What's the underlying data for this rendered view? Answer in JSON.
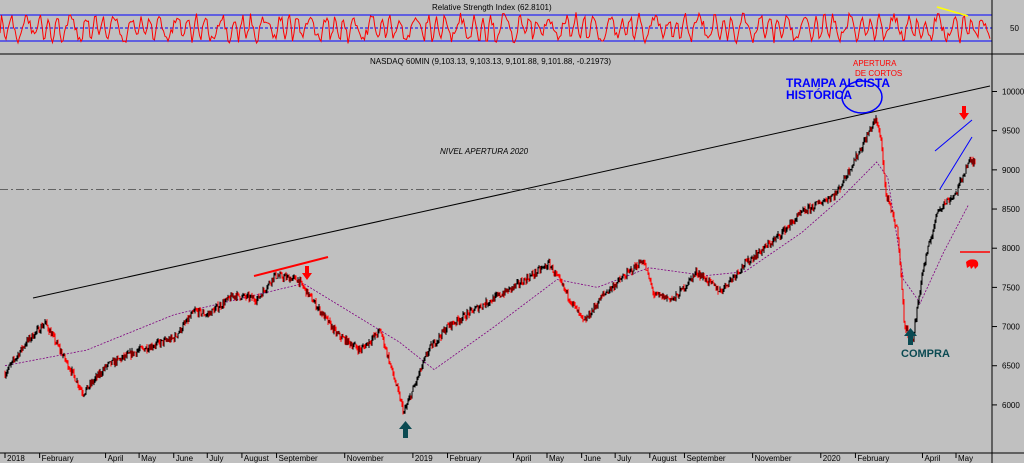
{
  "chart_data": {
    "type": "line",
    "panels": {
      "rsi": {
        "title": "Relative Strength Index (62.8101)",
        "tick_labels": [
          "50"
        ],
        "ylim": [
          0,
          100
        ],
        "levels": [
          70,
          50,
          30
        ]
      },
      "price": {
        "title": "NASDAQ 60MIN (9,103.13, 9,103.13, 9,101.88, 9,101.88, -0.21973)",
        "ylim": [
          5450,
          10300
        ],
        "y_ticks": [
          6000,
          6500,
          7000,
          7500,
          8000,
          8500,
          9000,
          9500,
          10000
        ],
        "x_labels": [
          "2018",
          "February",
          "April",
          "May",
          "June",
          "July",
          "August",
          "September",
          "November",
          "2019",
          "February",
          "April",
          "May",
          "June",
          "July",
          "August",
          "September",
          "November",
          "2020",
          "February",
          "April",
          "May"
        ],
        "nivel_2020": 8750
      }
    },
    "series": [
      {
        "name": "NASDAQ 60MIN",
        "x": [
          "2018-01",
          "2018-01-20",
          "2018-02-06",
          "2018-03-12",
          "2018-04-02",
          "2018-05-01",
          "2018-06-01",
          "2018-06-20",
          "2018-07-01",
          "2018-07-25",
          "2018-08-15",
          "2018-08-30",
          "2018-09-20",
          "2018-10-10",
          "2018-10-25",
          "2018-11-15",
          "2018-12-03",
          "2018-12-24",
          "2019-01-15",
          "2019-02-01",
          "2019-03-01",
          "2019-04-01",
          "2019-05-03",
          "2019-06-03",
          "2019-06-20",
          "2019-07-26",
          "2019-08-05",
          "2019-08-23",
          "2019-09-12",
          "2019-10-03",
          "2019-10-25",
          "2019-11-20",
          "2019-12-15",
          "2020-01-15",
          "2020-02-05",
          "2020-02-19",
          "2020-02-24",
          "2020-02-28",
          "2020-03-10",
          "2020-03-16",
          "2020-03-23",
          "2020-04-01",
          "2020-04-15",
          "2020-05-01",
          "2020-05-12"
        ],
        "values": [
          6400,
          6800,
          7050,
          6150,
          6500,
          6700,
          6850,
          7200,
          7150,
          7400,
          7350,
          7650,
          7600,
          7200,
          6900,
          6700,
          6950,
          5900,
          6700,
          7000,
          7250,
          7500,
          7800,
          7050,
          7400,
          7850,
          7400,
          7350,
          7700,
          7450,
          7800,
          8100,
          8450,
          8700,
          9250,
          9650,
          9400,
          8700,
          8200,
          7000,
          6800,
          7700,
          8500,
          8700,
          9100
        ]
      },
      {
        "name": "Media móvil",
        "x": [
          "2018-01",
          "2018-03-15",
          "2018-06-01",
          "2018-09-25",
          "2018-12-20",
          "2019-01-20",
          "2019-03-15",
          "2019-05-10",
          "2019-06-15",
          "2019-07-31",
          "2019-09-20",
          "2019-10-25",
          "2019-12-15",
          "2020-01-20",
          "2020-02-20",
          "2020-03-01",
          "2020-03-15",
          "2020-03-30",
          "2020-04-20",
          "2020-05-12"
        ],
        "values": [
          6500,
          6700,
          7150,
          7550,
          6800,
          6450,
          7000,
          7600,
          7500,
          7750,
          7650,
          7700,
          8200,
          8650,
          9100,
          8900,
          7600,
          7300,
          7950,
          8550
        ]
      }
    ],
    "annotations": {
      "trampa": "TRAMPA ALCISTA HISTÓRICA",
      "apertura": "APERTURA DE CORTOS",
      "compra": "COMPRA",
      "nivel": "NIVEL APERTURA 2020"
    },
    "colors": {
      "background": "#c0c0c0",
      "rsi": "#ff0000",
      "rsi_levels": "#0000ff",
      "price_up": "#000000",
      "price_down": "#ff0000",
      "moving_average": "#800080",
      "trend": "#000000",
      "annot_blue": "#0000ff",
      "annot_red": "#ff0000",
      "annot_teal": "#0b4a52",
      "yellow": "#ffff00"
    }
  }
}
